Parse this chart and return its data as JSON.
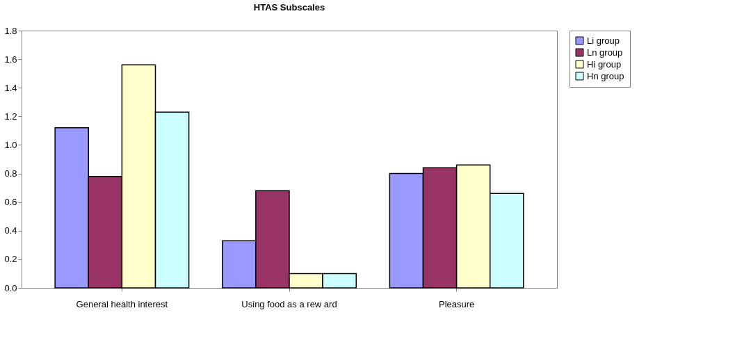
{
  "chart_data": {
    "type": "bar",
    "title": "HTAS Subscales",
    "categories": [
      "General health interest",
      "Using food as a rew ard",
      "Pleasure"
    ],
    "series": [
      {
        "name": "Li group",
        "color": "#9999ff",
        "values": [
          1.12,
          0.33,
          0.8
        ]
      },
      {
        "name": "Ln group",
        "color": "#993366",
        "values": [
          0.78,
          0.68,
          0.84
        ]
      },
      {
        "name": "Hi group",
        "color": "#ffffcc",
        "values": [
          1.56,
          0.1,
          0.86
        ]
      },
      {
        "name": "Hn group",
        "color": "#ccffff",
        "values": [
          1.23,
          0.1,
          0.66
        ]
      }
    ],
    "ylim": [
      0,
      1.8
    ],
    "yticks": [
      {
        "value": 0,
        "label": "0.0"
      },
      0.2,
      0.4,
      0.6,
      0.8,
      {
        "value": 1,
        "label": "1.0"
      },
      1.2,
      1.4,
      1.6,
      1.8
    ],
    "grid": false,
    "legend": "right"
  }
}
